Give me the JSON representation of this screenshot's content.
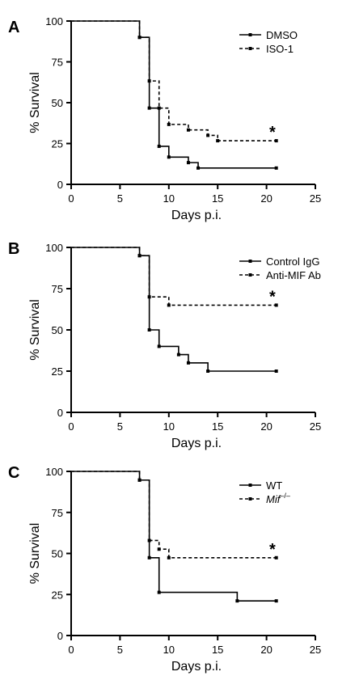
{
  "chart_data": [
    {
      "type": "line",
      "panel": "A",
      "xlabel": "Days p.i.",
      "ylabel": "% Survival",
      "xlim": [
        0,
        25
      ],
      "ylim": [
        0,
        100
      ],
      "xticks": [
        "0",
        "5",
        "10",
        "15",
        "20",
        "25"
      ],
      "yticks": [
        "0",
        "25",
        "50",
        "75",
        "100"
      ],
      "annotation": "*",
      "legend_position": "top-right",
      "series": [
        {
          "name": "DMSO",
          "style": "solid",
          "color": "#000000",
          "x": [
            0,
            7,
            8,
            9,
            10,
            12,
            13,
            21
          ],
          "y": [
            100,
            90,
            46.7,
            23.3,
            16.7,
            13.3,
            10,
            10
          ]
        },
        {
          "name": "ISO-1",
          "style": "dashed",
          "color": "#000000",
          "x": [
            0,
            7,
            8,
            9,
            10,
            12,
            14,
            15,
            21
          ],
          "y": [
            100,
            90,
            63.3,
            46.7,
            36.7,
            33.3,
            30,
            26.7,
            26.7
          ]
        }
      ]
    },
    {
      "type": "line",
      "panel": "B",
      "xlabel": "Days p.i.",
      "ylabel": "% Survival",
      "xlim": [
        0,
        25
      ],
      "ylim": [
        0,
        100
      ],
      "xticks": [
        "0",
        "5",
        "10",
        "15",
        "20",
        "25"
      ],
      "yticks": [
        "0",
        "25",
        "50",
        "75",
        "100"
      ],
      "annotation": "*",
      "legend_position": "top-right",
      "series": [
        {
          "name": "Control IgG",
          "style": "solid",
          "color": "#000000",
          "x": [
            0,
            7,
            8,
            9,
            11,
            12,
            14,
            21
          ],
          "y": [
            100,
            95,
            50,
            40,
            35,
            30,
            25,
            25
          ]
        },
        {
          "name": "Anti-MIF Ab",
          "style": "dashed",
          "color": "#000000",
          "x": [
            0,
            7,
            8,
            10,
            21
          ],
          "y": [
            100,
            95,
            70,
            65,
            65
          ]
        }
      ]
    },
    {
      "type": "line",
      "panel": "C",
      "xlabel": "Days p.i.",
      "ylabel": "% Survival",
      "xlim": [
        0,
        25
      ],
      "ylim": [
        0,
        100
      ],
      "xticks": [
        "0",
        "5",
        "10",
        "15",
        "20",
        "25"
      ],
      "yticks": [
        "0",
        "25",
        "50",
        "75",
        "100"
      ],
      "annotation": "*",
      "legend_position": "top-right",
      "series": [
        {
          "name": "WT",
          "style": "solid",
          "color": "#000000",
          "x": [
            0,
            7,
            8,
            9,
            17,
            21
          ],
          "y": [
            100,
            94.7,
            47.4,
            26.3,
            21.1,
            21.1
          ]
        },
        {
          "name": "Mif",
          "name_superscript": "–/–",
          "style": "dashed",
          "color": "#000000",
          "x": [
            0,
            7,
            8,
            9,
            10,
            21
          ],
          "y": [
            100,
            94.7,
            57.9,
            52.6,
            47.4,
            47.4
          ]
        }
      ]
    }
  ]
}
